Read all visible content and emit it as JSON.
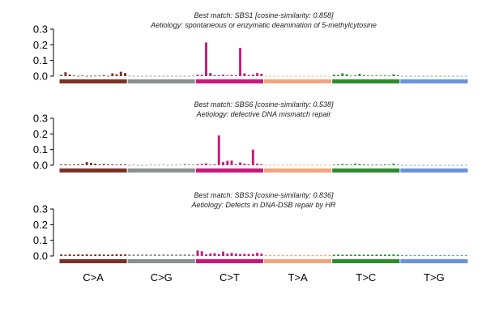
{
  "categories": [
    "C>A",
    "C>G",
    "C>T",
    "T>A",
    "T>C",
    "T>G"
  ],
  "colors": [
    "#7b3225",
    "#8a8f8f",
    "#c8197a",
    "#f0a57e",
    "#2e8b2e",
    "#6b93dc"
  ],
  "chart_data": [
    {
      "type": "bar",
      "title": "Best match: SBS1 [cosine-similarity: 0.858]",
      "subtitle": "Aetiology: spontaneous or enzymatic deamination of 5-methylcytosine",
      "ylim": [
        0,
        0.3
      ],
      "yticks": [
        "0.0",
        "0.1",
        "0.2",
        "0.3"
      ],
      "values": [
        0.008,
        0.025,
        0.01,
        0.004,
        0.002,
        0.004,
        0.002,
        0.002,
        0.003,
        0.003,
        0.006,
        0.002,
        0.018,
        0.012,
        0.028,
        0.02,
        0.003,
        0.002,
        0.002,
        0.002,
        0.002,
        0.002,
        0.002,
        0.002,
        0.002,
        0.003,
        0.002,
        0.002,
        0.002,
        0.002,
        0.002,
        0.003,
        0.009,
        0.008,
        0.215,
        0.02,
        0.006,
        0.005,
        0.009,
        0.004,
        0.007,
        0.005,
        0.18,
        0.018,
        0.007,
        0.01,
        0.02,
        0.015,
        0.002,
        0.002,
        0.002,
        0.002,
        0.002,
        0.002,
        0.002,
        0.002,
        0.002,
        0.002,
        0.002,
        0.002,
        0.002,
        0.002,
        0.002,
        0.002,
        0.01,
        0.008,
        0.018,
        0.012,
        0.003,
        0.005,
        0.015,
        0.006,
        0.004,
        0.004,
        0.004,
        0.004,
        0.004,
        0.003,
        0.012,
        0.006,
        0.002,
        0.002,
        0.002,
        0.002,
        0.002,
        0.002,
        0.002,
        0.002,
        0.002,
        0.002,
        0.002,
        0.002,
        0.002,
        0.002,
        0.002,
        0.002
      ]
    },
    {
      "type": "bar",
      "title": "Best match: SBS6 [cosine-similarity: 0.538]",
      "subtitle": "Aetiology: defective DNA mismatch repair",
      "ylim": [
        0,
        0.3
      ],
      "yticks": [
        "0.0",
        "0.1",
        "0.2",
        "0.3"
      ],
      "values": [
        0.005,
        0.006,
        0.004,
        0.005,
        0.006,
        0.008,
        0.02,
        0.015,
        0.01,
        0.006,
        0.008,
        0.006,
        0.005,
        0.004,
        0.006,
        0.005,
        0.002,
        0.003,
        0.002,
        0.002,
        0.002,
        0.004,
        0.003,
        0.002,
        0.004,
        0.002,
        0.003,
        0.003,
        0.004,
        0.008,
        0.005,
        0.004,
        0.006,
        0.008,
        0.012,
        0.004,
        0.006,
        0.19,
        0.02,
        0.028,
        0.03,
        0.006,
        0.018,
        0.01,
        0.006,
        0.1,
        0.01,
        0.006,
        0.002,
        0.002,
        0.002,
        0.002,
        0.002,
        0.003,
        0.002,
        0.002,
        0.002,
        0.002,
        0.002,
        0.002,
        0.002,
        0.002,
        0.002,
        0.002,
        0.004,
        0.006,
        0.008,
        0.006,
        0.004,
        0.01,
        0.008,
        0.006,
        0.003,
        0.003,
        0.004,
        0.003,
        0.005,
        0.004,
        0.01,
        0.004,
        0.002,
        0.002,
        0.002,
        0.002,
        0.002,
        0.002,
        0.002,
        0.002,
        0.002,
        0.002,
        0.002,
        0.002,
        0.002,
        0.002,
        0.002,
        0.002
      ]
    },
    {
      "type": "bar",
      "title": "Best match: SBS3 [cosine-similarity: 0.836]",
      "subtitle": "Aetiology: Defects in DNA-DSB repair by HR",
      "ylim": [
        0,
        0.3
      ],
      "yticks": [
        "0.0",
        "0.1",
        "0.2",
        "0.3"
      ],
      "values": [
        0.01,
        0.008,
        0.01,
        0.008,
        0.01,
        0.009,
        0.01,
        0.008,
        0.01,
        0.01,
        0.009,
        0.008,
        0.01,
        0.011,
        0.01,
        0.01,
        0.01,
        0.009,
        0.01,
        0.009,
        0.01,
        0.009,
        0.01,
        0.009,
        0.01,
        0.009,
        0.01,
        0.009,
        0.01,
        0.01,
        0.01,
        0.009,
        0.035,
        0.03,
        0.01,
        0.016,
        0.018,
        0.012,
        0.028,
        0.015,
        0.02,
        0.015,
        0.012,
        0.014,
        0.013,
        0.012,
        0.02,
        0.015,
        0.007,
        0.007,
        0.006,
        0.006,
        0.007,
        0.006,
        0.007,
        0.006,
        0.007,
        0.006,
        0.007,
        0.006,
        0.007,
        0.006,
        0.007,
        0.006,
        0.008,
        0.009,
        0.008,
        0.008,
        0.008,
        0.008,
        0.009,
        0.008,
        0.008,
        0.008,
        0.009,
        0.008,
        0.008,
        0.008,
        0.01,
        0.008,
        0.006,
        0.006,
        0.006,
        0.006,
        0.006,
        0.006,
        0.006,
        0.006,
        0.006,
        0.006,
        0.006,
        0.006,
        0.006,
        0.006,
        0.006,
        0.006
      ]
    }
  ]
}
